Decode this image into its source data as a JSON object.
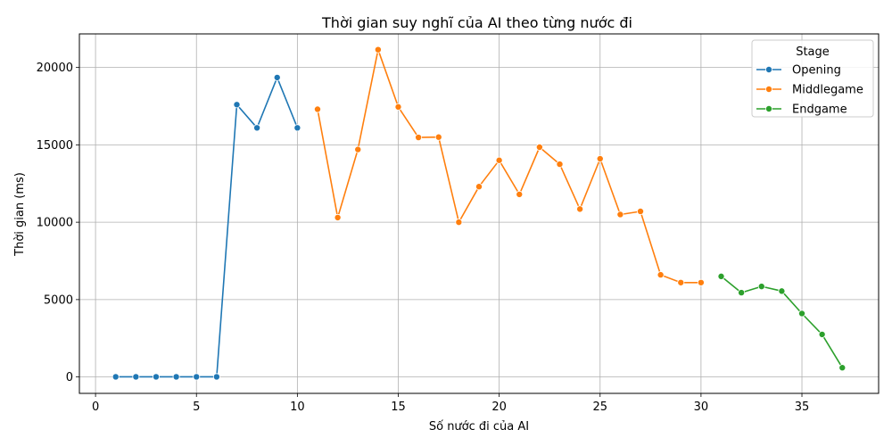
{
  "chart_data": {
    "type": "line",
    "title": "Thời gian suy nghĩ của AI theo từng nước đi",
    "xlabel": "Số nước đi của AI",
    "ylabel": "Thời gian (ms)",
    "xlim": [
      -0.8,
      38.8
    ],
    "ylim": [
      -1060,
      22170
    ],
    "xticks": [
      0,
      5,
      10,
      15,
      20,
      25,
      30,
      35
    ],
    "yticks": [
      0,
      5000,
      10000,
      15000,
      20000
    ],
    "grid": true,
    "legend": {
      "title": "Stage",
      "placement": "top-right"
    },
    "series": [
      {
        "name": "Opening",
        "color": "#1f77b4",
        "x": [
          1,
          2,
          3,
          4,
          5,
          6,
          7,
          8,
          9,
          10
        ],
        "y": [
          10,
          10,
          10,
          10,
          10,
          10,
          17600,
          16100,
          19350,
          16100
        ]
      },
      {
        "name": "Middlegame",
        "color": "#ff7f0e",
        "x": [
          11,
          12,
          13,
          14,
          15,
          16,
          17,
          18,
          19,
          20,
          21,
          22,
          23,
          24,
          25,
          26,
          27,
          28,
          29,
          30
        ],
        "y": [
          17300,
          10300,
          14700,
          21150,
          17450,
          15480,
          15500,
          10000,
          12300,
          14000,
          11800,
          14850,
          13750,
          10850,
          14100,
          10500,
          10700,
          6600,
          6100,
          6100
        ]
      },
      {
        "name": "Endgame",
        "color": "#2ca02c",
        "x": [
          31,
          32,
          33,
          34,
          35,
          36,
          37
        ],
        "y": [
          6500,
          5450,
          5850,
          5550,
          4100,
          2750,
          600
        ]
      }
    ]
  }
}
